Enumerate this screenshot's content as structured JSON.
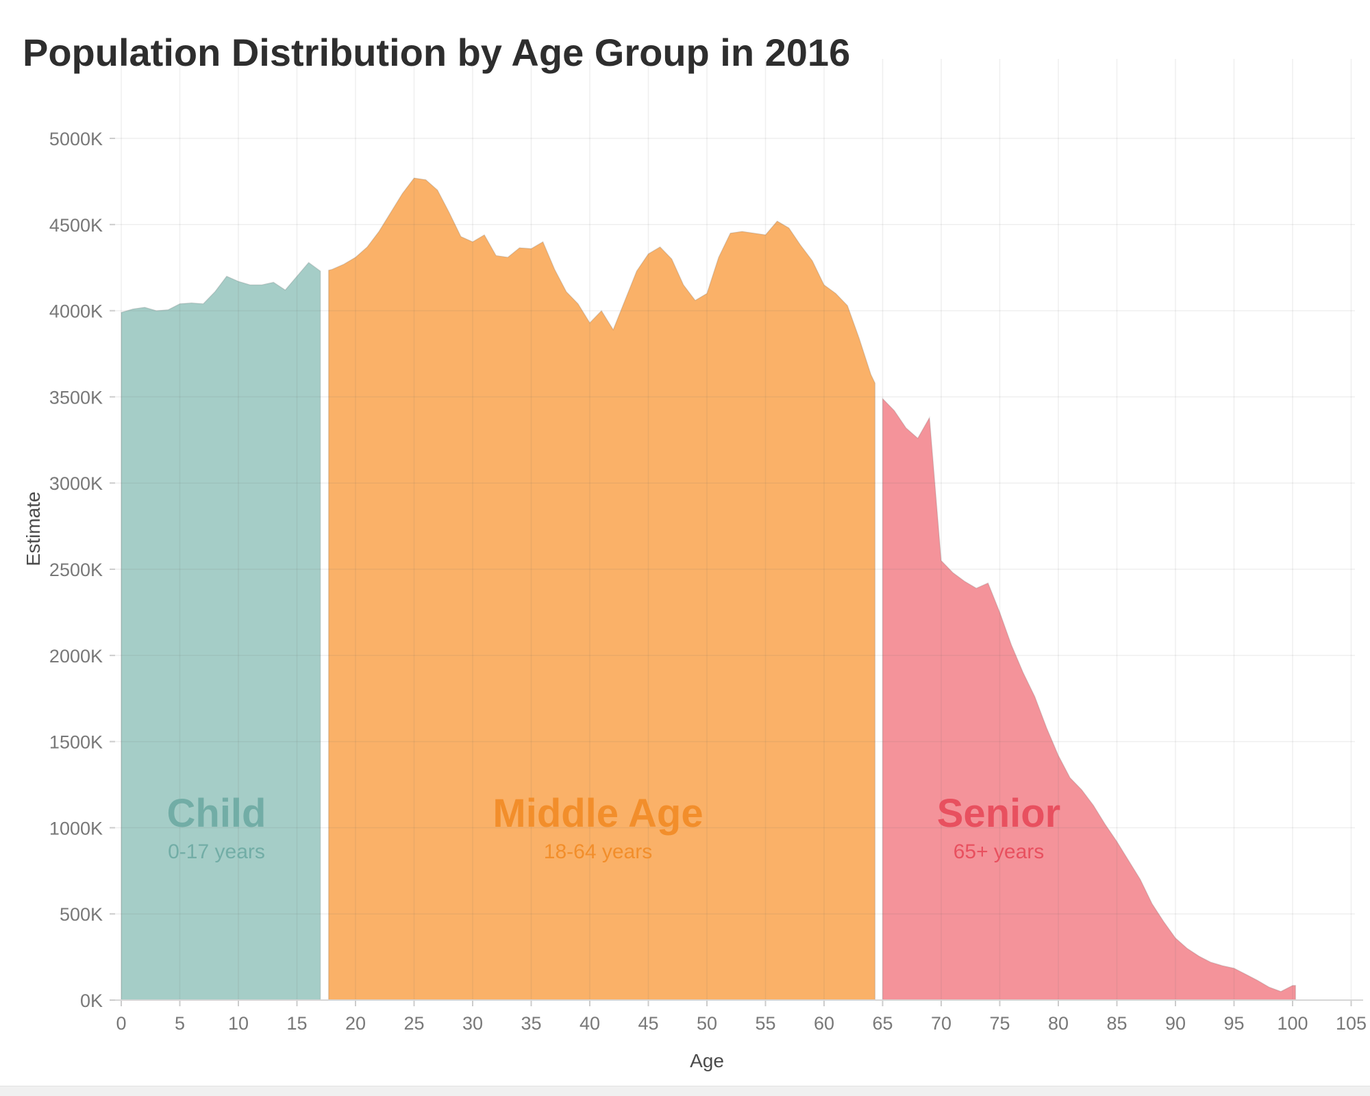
{
  "page": {
    "title": "Population Distribution by Age Group in 2016"
  },
  "chart_data": {
    "type": "area",
    "title": "Population Distribution by Age Group in 2016",
    "xlabel": "Age",
    "ylabel": "Estimate",
    "xlim": [
      0,
      105
    ],
    "ylim": [
      0,
      5000
    ],
    "grid": true,
    "legend_position": "in-plot-labels",
    "x_ticks": [
      0,
      5,
      10,
      15,
      20,
      25,
      30,
      35,
      40,
      45,
      50,
      55,
      60,
      65,
      70,
      75,
      80,
      85,
      90,
      95,
      100,
      105
    ],
    "y_ticks": [
      0,
      500,
      1000,
      1500,
      2000,
      2500,
      3000,
      3500,
      4000,
      4500,
      5000
    ],
    "y_tick_labels": [
      "0K",
      "500K",
      "1000K",
      "1500K",
      "2000K",
      "2500K",
      "3000K",
      "3500K",
      "4000K",
      "4500K",
      "5000K"
    ],
    "units": "thousands of people",
    "series": [
      {
        "name": "Child",
        "label": "Child",
        "sublabel": "0-17 years",
        "age_range": "0-17",
        "fill": "#A5CDC7",
        "label_color": "#72ADA6",
        "label_age_center": 8.1,
        "points": [
          [
            0,
            3990
          ],
          [
            1,
            4010
          ],
          [
            2,
            4020
          ],
          [
            3,
            4000
          ],
          [
            4,
            4005
          ],
          [
            5,
            4040
          ],
          [
            6,
            4045
          ],
          [
            7,
            4040
          ],
          [
            8,
            4110
          ],
          [
            9,
            4200
          ],
          [
            10,
            4170
          ],
          [
            11,
            4150
          ],
          [
            12,
            4150
          ],
          [
            13,
            4165
          ],
          [
            14,
            4120
          ],
          [
            15,
            4200
          ],
          [
            16,
            4280
          ],
          [
            17,
            4230
          ]
        ]
      },
      {
        "name": "Middle Age",
        "label": "Middle Age",
        "sublabel": "18-64 years",
        "age_range": "18-64",
        "fill": "#FAB168",
        "label_color": "#F28E2B",
        "label_age_center": 40.7,
        "points": [
          [
            17.7,
            4235
          ],
          [
            18,
            4240
          ],
          [
            19,
            4270
          ],
          [
            20,
            4310
          ],
          [
            21,
            4370
          ],
          [
            22,
            4460
          ],
          [
            23,
            4570
          ],
          [
            24,
            4680
          ],
          [
            25,
            4770
          ],
          [
            26,
            4760
          ],
          [
            27,
            4700
          ],
          [
            28,
            4570
          ],
          [
            29,
            4430
          ],
          [
            30,
            4400
          ],
          [
            31,
            4440
          ],
          [
            32,
            4320
          ],
          [
            33,
            4310
          ],
          [
            34,
            4365
          ],
          [
            35,
            4360
          ],
          [
            36,
            4400
          ],
          [
            37,
            4240
          ],
          [
            38,
            4110
          ],
          [
            39,
            4040
          ],
          [
            40,
            3930
          ],
          [
            41,
            4000
          ],
          [
            42,
            3890
          ],
          [
            43,
            4060
          ],
          [
            44,
            4230
          ],
          [
            45,
            4330
          ],
          [
            46,
            4370
          ],
          [
            47,
            4300
          ],
          [
            48,
            4150
          ],
          [
            49,
            4060
          ],
          [
            50,
            4100
          ],
          [
            51,
            4310
          ],
          [
            52,
            4450
          ],
          [
            53,
            4460
          ],
          [
            54,
            4450
          ],
          [
            55,
            4440
          ],
          [
            56,
            4520
          ],
          [
            57,
            4480
          ],
          [
            58,
            4380
          ],
          [
            59,
            4290
          ],
          [
            60,
            4150
          ],
          [
            61,
            4100
          ],
          [
            62,
            4030
          ],
          [
            63,
            3840
          ],
          [
            64,
            3630
          ],
          [
            64.35,
            3580
          ]
        ]
      },
      {
        "name": "Senior",
        "label": "Senior",
        "sublabel": "65+ years",
        "age_range": "65+",
        "fill": "#F4939A",
        "label_color": "#E8505F",
        "label_age_center": 74.9,
        "points": [
          [
            65,
            3490
          ],
          [
            66,
            3420
          ],
          [
            67,
            3320
          ],
          [
            68,
            3260
          ],
          [
            69,
            3380
          ],
          [
            70,
            2550
          ],
          [
            71,
            2480
          ],
          [
            72,
            2430
          ],
          [
            73,
            2390
          ],
          [
            74,
            2420
          ],
          [
            75,
            2250
          ],
          [
            76,
            2060
          ],
          [
            77,
            1900
          ],
          [
            78,
            1760
          ],
          [
            79,
            1580
          ],
          [
            80,
            1420
          ],
          [
            81,
            1290
          ],
          [
            82,
            1220
          ],
          [
            83,
            1130
          ],
          [
            84,
            1020
          ],
          [
            85,
            920
          ],
          [
            86,
            810
          ],
          [
            87,
            700
          ],
          [
            88,
            560
          ],
          [
            89,
            455
          ],
          [
            90,
            360
          ],
          [
            91,
            300
          ],
          [
            92,
            255
          ],
          [
            93,
            220
          ],
          [
            94,
            200
          ],
          [
            95,
            185
          ],
          [
            96,
            150
          ],
          [
            97,
            115
          ],
          [
            98,
            75
          ],
          [
            99,
            50
          ],
          [
            100,
            85
          ],
          [
            100.25,
            85
          ]
        ]
      }
    ]
  }
}
